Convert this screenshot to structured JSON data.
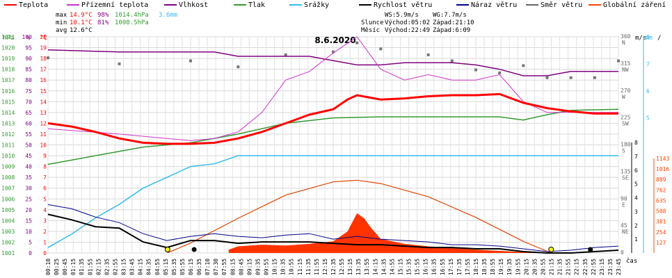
{
  "chart_data": {
    "type": "line",
    "title": "8.6.2020",
    "legend": [
      {
        "name": "Teplota",
        "color": "#ff0000"
      },
      {
        "name": "Přízemní teplota",
        "color": "#cc33cc"
      },
      {
        "name": "Vlhkost",
        "color": "#800080"
      },
      {
        "name": "Tlak",
        "color": "#339933"
      },
      {
        "name": "Srážky",
        "color": "#33bbee"
      },
      {
        "name": "Rychlost větru",
        "color": "#000000"
      },
      {
        "name": "Náraz větru",
        "color": "#000088"
      },
      {
        "name": "Směr větru",
        "color": "#666666"
      },
      {
        "name": "Globální záření",
        "color": "#ff4400"
      }
    ],
    "stats": {
      "max": {
        "label": "max",
        "temp": "14.9°C",
        "hum": "98%",
        "press": "1014.4hPa",
        "rain": "3.6mm"
      },
      "min": {
        "label": "min",
        "temp": "10.1°C",
        "hum": "81%",
        "press": "1008.5hPa"
      },
      "avg": {
        "label": "avg",
        "temp": "12.6°C"
      }
    },
    "info": {
      "ws": "WS:5.9m/s",
      "wg": "WG:7.7m/s",
      "sun_label": "Slunce",
      "sunrise": "Východ:05:02",
      "sunset": "Západ:21:10",
      "moon_label": "Měsíc",
      "moonrise": "Východ:22:49",
      "moonset": "Západ:6:09"
    },
    "axes": {
      "hpa": {
        "unit": "hPa",
        "ticks": [
          "1001",
          "1002",
          "1003",
          "1004",
          "1005",
          "1006",
          "1007",
          "1008",
          "1009",
          "1010",
          "1011",
          "1012",
          "1013",
          "1014",
          "1015",
          "1016",
          "1017",
          "1018",
          "1019",
          "1020",
          "1021"
        ]
      },
      "pct": {
        "unit": "%",
        "ticks": [
          "0",
          "5",
          "10",
          "15",
          "20",
          "25",
          "30",
          "35",
          "40",
          "45",
          "50",
          "55",
          "60",
          "65",
          "70",
          "75",
          "80",
          "85",
          "90",
          "95",
          "100"
        ]
      },
      "temp": {
        "unit": "°C",
        "ticks": [
          "0",
          "1",
          "2",
          "3",
          "4",
          "5",
          "6",
          "7",
          "8",
          "9",
          "10",
          "11",
          "12",
          "13",
          "14",
          "15",
          "16",
          "17",
          "18",
          "19",
          "20"
        ]
      },
      "dir": {
        "ticks": [
          {
            "deg": "360",
            "lab": "N"
          },
          {
            "deg": "315",
            "lab": "NW"
          },
          {
            "deg": "270",
            "lab": "W"
          },
          {
            "deg": "225",
            "lab": "SW"
          },
          {
            "deg": "180",
            "lab": "S"
          },
          {
            "deg": "135",
            "lab": "SE"
          },
          {
            "deg": "90",
            "lab": "E"
          },
          {
            "deg": "45",
            "lab": "NE"
          },
          {
            "deg": "0",
            "lab": ""
          }
        ]
      },
      "ms": {
        "unit": "m/s",
        "ticks": [
          "1",
          "2",
          "3",
          "4",
          "5",
          "6",
          "7",
          "8"
        ]
      },
      "mm": {
        "unit": "mm",
        "ticks": [
          "5",
          "6",
          "7",
          "8"
        ]
      },
      "wm2": {
        "ticks": [
          "127",
          "254",
          "381",
          "508",
          "635",
          "762",
          "889",
          "1016",
          "1143"
        ]
      },
      "x": {
        "unit": "čas",
        "ticks": [
          "00:10",
          "00:25",
          "00:45",
          "01:15",
          "01:35",
          "01:55",
          "02:15",
          "02:35",
          "02:55",
          "03:15",
          "03:45",
          "04:15",
          "04:35",
          "04:55",
          "05:15",
          "05:35",
          "05:55",
          "06:15",
          "06:35",
          "07:10",
          "07:30",
          "07:55",
          "08:15",
          "08:45",
          "09:15",
          "09:35",
          "09:55",
          "10:15",
          "10:35",
          "10:55",
          "11:15",
          "11:35",
          "11:55",
          "12:15",
          "12:35",
          "12:55",
          "13:15",
          "13:35",
          "13:55",
          "14:15",
          "14:35",
          "14:55",
          "15:15",
          "15:35",
          "15:55",
          "16:15",
          "16:35",
          "16:55",
          "17:15",
          "17:35",
          "17:55",
          "18:15",
          "18:35",
          "18:55",
          "19:15",
          "19:35",
          "19:55",
          "20:15",
          "20:35",
          "20:55",
          "21:15",
          "21:35",
          "21:55",
          "22:15",
          "22:35",
          "22:55",
          "23:15",
          "23:35",
          "23:45"
        ]
      }
    },
    "series": {
      "temperature_c": [
        [
          0,
          12
        ],
        [
          1,
          11.7
        ],
        [
          2,
          11.2
        ],
        [
          3,
          10.6
        ],
        [
          4,
          10.2
        ],
        [
          5,
          10.1
        ],
        [
          6,
          10.1
        ],
        [
          7,
          10.2
        ],
        [
          8,
          10.6
        ],
        [
          9,
          11.2
        ],
        [
          10,
          12
        ],
        [
          11,
          12.8
        ],
        [
          12,
          13.3
        ],
        [
          12.6,
          14.2
        ],
        [
          13,
          14.6
        ],
        [
          14,
          14.2
        ],
        [
          15,
          14.3
        ],
        [
          16,
          14.5
        ],
        [
          17,
          14.6
        ],
        [
          18,
          14.6
        ],
        [
          19,
          14.7
        ],
        [
          20,
          13.9
        ],
        [
          21,
          13.4
        ],
        [
          22,
          13.1
        ],
        [
          23,
          12.9
        ],
        [
          24,
          12.9
        ]
      ],
      "ground_temp_c": [
        [
          0,
          11.5
        ],
        [
          3,
          11
        ],
        [
          5,
          10.6
        ],
        [
          6,
          10.4
        ],
        [
          7,
          10.6
        ],
        [
          8,
          11.2
        ],
        [
          9,
          13
        ],
        [
          10,
          16
        ],
        [
          11,
          16.8
        ],
        [
          12,
          18.5
        ],
        [
          13,
          20
        ],
        [
          14,
          17
        ],
        [
          15,
          16
        ],
        [
          16,
          16.5
        ],
        [
          17,
          16
        ],
        [
          18,
          16
        ],
        [
          19,
          16.5
        ],
        [
          20,
          14
        ],
        [
          21,
          13
        ],
        [
          22,
          13
        ],
        [
          24,
          13
        ]
      ],
      "humidity_pct": [
        [
          0,
          94
        ],
        [
          3,
          93
        ],
        [
          5,
          93
        ],
        [
          7,
          93
        ],
        [
          8,
          91
        ],
        [
          9,
          91
        ],
        [
          10,
          91
        ],
        [
          11,
          91
        ],
        [
          12,
          89
        ],
        [
          13,
          87
        ],
        [
          14,
          87
        ],
        [
          15,
          88
        ],
        [
          16,
          88
        ],
        [
          17,
          88
        ],
        [
          18,
          87
        ],
        [
          19,
          85
        ],
        [
          20,
          82
        ],
        [
          21,
          82
        ],
        [
          22,
          84
        ],
        [
          23,
          84
        ],
        [
          24,
          84
        ]
      ],
      "pressure_hpa": [
        [
          0,
          1009.2
        ],
        [
          2,
          1010
        ],
        [
          4,
          1010.8
        ],
        [
          6,
          1011.2
        ],
        [
          8,
          1012
        ],
        [
          10,
          1013
        ],
        [
          12,
          1013.5
        ],
        [
          14,
          1013.6
        ],
        [
          16,
          1013.6
        ],
        [
          18,
          1013.6
        ],
        [
          19,
          1013.6
        ],
        [
          20,
          1013.3
        ],
        [
          21,
          1013.8
        ],
        [
          22,
          1014.2
        ],
        [
          24,
          1014.3
        ]
      ],
      "rain_cumulative_mm": [
        [
          0,
          0.2
        ],
        [
          1,
          0.7
        ],
        [
          2,
          1.3
        ],
        [
          3,
          1.8
        ],
        [
          4,
          2.4
        ],
        [
          5,
          2.8
        ],
        [
          6,
          3.2
        ],
        [
          7,
          3.3
        ],
        [
          8,
          3.6
        ],
        [
          24,
          3.6
        ]
      ],
      "wind_speed_ms": [
        [
          0,
          2.8
        ],
        [
          1,
          2.4
        ],
        [
          2,
          1.9
        ],
        [
          3,
          1.8
        ],
        [
          4,
          0.8
        ],
        [
          5,
          0.4
        ],
        [
          6,
          0.9
        ],
        [
          7,
          0.9
        ],
        [
          8,
          0.7
        ],
        [
          9,
          0.8
        ],
        [
          10,
          0.8
        ],
        [
          11,
          0.8
        ],
        [
          12,
          0.7
        ],
        [
          13,
          0.6
        ],
        [
          14,
          0.6
        ],
        [
          15,
          0.5
        ],
        [
          16,
          0.4
        ],
        [
          17,
          0.4
        ],
        [
          18,
          0.3
        ],
        [
          19,
          0.3
        ],
        [
          20,
          0.1
        ],
        [
          21,
          0
        ],
        [
          22,
          0
        ],
        [
          23,
          0.1
        ],
        [
          24,
          0.2
        ]
      ],
      "wind_gust_ms": [
        [
          0,
          3.5
        ],
        [
          1,
          3.2
        ],
        [
          2,
          2.6
        ],
        [
          3,
          2.2
        ],
        [
          4,
          1.4
        ],
        [
          5,
          0.9
        ],
        [
          6,
          1.2
        ],
        [
          7,
          1.4
        ],
        [
          8,
          1.2
        ],
        [
          9,
          1.1
        ],
        [
          10,
          1.3
        ],
        [
          11,
          1.4
        ],
        [
          12,
          1
        ],
        [
          13,
          1.2
        ],
        [
          14,
          1
        ],
        [
          15,
          0.9
        ],
        [
          16,
          0.8
        ],
        [
          17,
          0.6
        ],
        [
          18,
          0.6
        ],
        [
          19,
          0.5
        ],
        [
          20,
          0.3
        ],
        [
          21,
          0.1
        ],
        [
          22,
          0.2
        ],
        [
          23,
          0.4
        ],
        [
          24,
          0.5
        ]
      ],
      "solar_wm2": [
        [
          5.02,
          0
        ],
        [
          6,
          120
        ],
        [
          8,
          420
        ],
        [
          10,
          700
        ],
        [
          12,
          860
        ],
        [
          13,
          880
        ],
        [
          14,
          840
        ],
        [
          16,
          680
        ],
        [
          18,
          430
        ],
        [
          20,
          140
        ],
        [
          21.17,
          0
        ]
      ],
      "solar_measured_wm2": [
        [
          7.6,
          40
        ],
        [
          8,
          80
        ],
        [
          9,
          100
        ],
        [
          10,
          90
        ],
        [
          11,
          110
        ],
        [
          12,
          140
        ],
        [
          12.6,
          260
        ],
        [
          13,
          480
        ],
        [
          13.3,
          420
        ],
        [
          13.6,
          300
        ],
        [
          14,
          170
        ],
        [
          15,
          110
        ],
        [
          16,
          80
        ],
        [
          17,
          60
        ],
        [
          18,
          40
        ],
        [
          19,
          25
        ],
        [
          20,
          10
        ],
        [
          20.5,
          0
        ]
      ],
      "wind_dir_deg": [
        [
          0,
          325
        ],
        [
          3,
          315
        ],
        [
          6,
          320
        ],
        [
          8,
          310
        ],
        [
          10,
          330
        ],
        [
          12,
          335
        ],
        [
          13,
          350
        ],
        [
          14,
          340
        ],
        [
          16,
          330
        ],
        [
          17,
          320
        ],
        [
          18,
          305
        ],
        [
          19,
          300
        ],
        [
          20,
          312
        ],
        [
          21,
          292
        ],
        [
          22,
          292
        ],
        [
          23,
          292
        ],
        [
          24,
          320
        ]
      ]
    }
  }
}
